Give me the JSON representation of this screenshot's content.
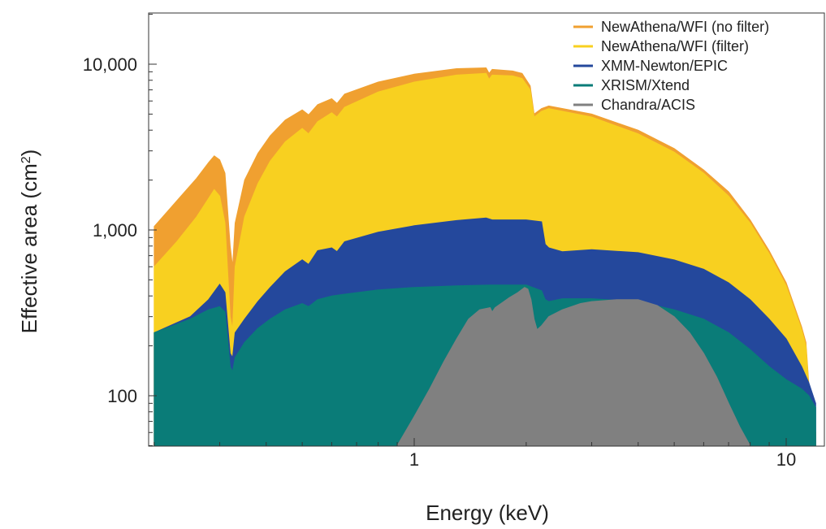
{
  "chart_data": {
    "type": "area",
    "xlabel": "Energy (keV)",
    "ylabel": "Effective area (cm2)",
    "x_scale": "log",
    "y_scale": "log",
    "xlim": [
      0.2,
      12
    ],
    "ylim": [
      50,
      20000
    ],
    "x_ticks": [
      {
        "value": 1,
        "label": "1"
      },
      {
        "value": 10,
        "label": "10"
      }
    ],
    "y_ticks": [
      {
        "value": 100,
        "label": "100"
      },
      {
        "value": 1000,
        "label": "1,000"
      },
      {
        "value": 10000,
        "label": "10,000"
      }
    ],
    "legend_position": "top-right",
    "grid": false,
    "series": [
      {
        "name": "NewAthena/WFI (no filter)",
        "color": "#F0A030",
        "points": [
          [
            0.2,
            1050
          ],
          [
            0.23,
            1500
          ],
          [
            0.26,
            2050
          ],
          [
            0.28,
            2550
          ],
          [
            0.29,
            2800
          ],
          [
            0.3,
            2650
          ],
          [
            0.31,
            2200
          ],
          [
            0.32,
            800
          ],
          [
            0.325,
            600
          ],
          [
            0.33,
            1100
          ],
          [
            0.35,
            2000
          ],
          [
            0.38,
            2900
          ],
          [
            0.41,
            3700
          ],
          [
            0.45,
            4600
          ],
          [
            0.5,
            5300
          ],
          [
            0.52,
            4950
          ],
          [
            0.55,
            5700
          ],
          [
            0.6,
            6200
          ],
          [
            0.62,
            5800
          ],
          [
            0.65,
            6600
          ],
          [
            0.8,
            7800
          ],
          [
            1.0,
            8700
          ],
          [
            1.3,
            9400
          ],
          [
            1.56,
            9500
          ],
          [
            1.59,
            8800
          ],
          [
            1.62,
            9300
          ],
          [
            1.84,
            9100
          ],
          [
            1.95,
            8800
          ],
          [
            2.05,
            7400
          ],
          [
            2.1,
            5000
          ],
          [
            2.2,
            5400
          ],
          [
            2.3,
            5600
          ],
          [
            3.0,
            5000
          ],
          [
            4.0,
            4000
          ],
          [
            5.0,
            3100
          ],
          [
            6.0,
            2300
          ],
          [
            7.0,
            1700
          ],
          [
            8.0,
            1150
          ],
          [
            9.0,
            750
          ],
          [
            10.0,
            480
          ],
          [
            11.0,
            260
          ],
          [
            11.3,
            210
          ],
          [
            11.6,
            90
          ],
          [
            12.0,
            60
          ]
        ]
      },
      {
        "name": "NewAthena/WFI (filter)",
        "color": "#F8D020",
        "points": [
          [
            0.2,
            600
          ],
          [
            0.23,
            850
          ],
          [
            0.26,
            1200
          ],
          [
            0.28,
            1550
          ],
          [
            0.29,
            1750
          ],
          [
            0.3,
            1600
          ],
          [
            0.31,
            1100
          ],
          [
            0.32,
            300
          ],
          [
            0.325,
            250
          ],
          [
            0.33,
            600
          ],
          [
            0.35,
            1200
          ],
          [
            0.38,
            1900
          ],
          [
            0.41,
            2600
          ],
          [
            0.45,
            3400
          ],
          [
            0.5,
            4100
          ],
          [
            0.52,
            3800
          ],
          [
            0.55,
            4500
          ],
          [
            0.6,
            5100
          ],
          [
            0.62,
            4800
          ],
          [
            0.65,
            5500
          ],
          [
            0.8,
            6800
          ],
          [
            1.0,
            7800
          ],
          [
            1.3,
            8600
          ],
          [
            1.56,
            8800
          ],
          [
            1.59,
            8100
          ],
          [
            1.62,
            8600
          ],
          [
            1.84,
            8500
          ],
          [
            1.95,
            8200
          ],
          [
            2.05,
            7000
          ],
          [
            2.1,
            4800
          ],
          [
            2.2,
            5200
          ],
          [
            2.3,
            5400
          ],
          [
            3.0,
            4800
          ],
          [
            4.0,
            3800
          ],
          [
            5.0,
            2950
          ],
          [
            6.0,
            2200
          ],
          [
            7.0,
            1600
          ],
          [
            8.0,
            1100
          ],
          [
            9.0,
            720
          ],
          [
            10.0,
            460
          ],
          [
            11.0,
            250
          ],
          [
            11.3,
            200
          ],
          [
            11.6,
            85
          ],
          [
            12.0,
            60
          ]
        ]
      },
      {
        "name": "XMM-Newton/EPIC",
        "color": "#24489C",
        "points": [
          [
            0.2,
            240
          ],
          [
            0.25,
            300
          ],
          [
            0.28,
            380
          ],
          [
            0.3,
            470
          ],
          [
            0.31,
            420
          ],
          [
            0.32,
            180
          ],
          [
            0.325,
            170
          ],
          [
            0.33,
            240
          ],
          [
            0.35,
            290
          ],
          [
            0.38,
            370
          ],
          [
            0.41,
            450
          ],
          [
            0.45,
            560
          ],
          [
            0.5,
            660
          ],
          [
            0.52,
            620
          ],
          [
            0.55,
            750
          ],
          [
            0.6,
            780
          ],
          [
            0.62,
            740
          ],
          [
            0.65,
            850
          ],
          [
            0.8,
            970
          ],
          [
            1.0,
            1060
          ],
          [
            1.3,
            1140
          ],
          [
            1.56,
            1180
          ],
          [
            1.62,
            1150
          ],
          [
            2.0,
            1150
          ],
          [
            2.2,
            1120
          ],
          [
            2.25,
            820
          ],
          [
            2.3,
            780
          ],
          [
            2.5,
            740
          ],
          [
            3.0,
            760
          ],
          [
            4.0,
            730
          ],
          [
            5.0,
            660
          ],
          [
            6.0,
            580
          ],
          [
            7.0,
            480
          ],
          [
            8.0,
            380
          ],
          [
            9.0,
            290
          ],
          [
            10.0,
            220
          ],
          [
            11.0,
            150
          ],
          [
            11.5,
            120
          ],
          [
            12.0,
            90
          ]
        ]
      },
      {
        "name": "XRISM/Xtend",
        "color": "#0A7C78",
        "points": [
          [
            0.2,
            240
          ],
          [
            0.22,
            260
          ],
          [
            0.25,
            290
          ],
          [
            0.28,
            330
          ],
          [
            0.3,
            345
          ],
          [
            0.31,
            320
          ],
          [
            0.32,
            150
          ],
          [
            0.325,
            140
          ],
          [
            0.33,
            170
          ],
          [
            0.35,
            210
          ],
          [
            0.38,
            255
          ],
          [
            0.41,
            290
          ],
          [
            0.45,
            330
          ],
          [
            0.5,
            360
          ],
          [
            0.52,
            345
          ],
          [
            0.55,
            380
          ],
          [
            0.6,
            400
          ],
          [
            0.65,
            410
          ],
          [
            0.8,
            435
          ],
          [
            1.0,
            450
          ],
          [
            1.3,
            460
          ],
          [
            1.6,
            465
          ],
          [
            2.0,
            465
          ],
          [
            2.2,
            430
          ],
          [
            2.25,
            380
          ],
          [
            2.3,
            370
          ],
          [
            2.5,
            385
          ],
          [
            3.0,
            385
          ],
          [
            4.0,
            370
          ],
          [
            5.0,
            330
          ],
          [
            6.0,
            290
          ],
          [
            7.0,
            240
          ],
          [
            8.0,
            190
          ],
          [
            9.0,
            150
          ],
          [
            10.0,
            125
          ],
          [
            11.0,
            110
          ],
          [
            11.5,
            100
          ],
          [
            12.0,
            85
          ]
        ]
      },
      {
        "name": "Chandra/ACIS",
        "color": "#808080",
        "points": [
          [
            0.9,
            50
          ],
          [
            1.0,
            75
          ],
          [
            1.1,
            110
          ],
          [
            1.2,
            160
          ],
          [
            1.3,
            220
          ],
          [
            1.4,
            290
          ],
          [
            1.5,
            330
          ],
          [
            1.6,
            340
          ],
          [
            1.62,
            320
          ],
          [
            1.65,
            340
          ],
          [
            1.8,
            390
          ],
          [
            1.9,
            420
          ],
          [
            1.98,
            450
          ],
          [
            2.02,
            440
          ],
          [
            2.06,
            380
          ],
          [
            2.1,
            290
          ],
          [
            2.14,
            250
          ],
          [
            2.2,
            265
          ],
          [
            2.3,
            300
          ],
          [
            2.5,
            330
          ],
          [
            2.8,
            360
          ],
          [
            3.0,
            370
          ],
          [
            3.5,
            380
          ],
          [
            4.0,
            380
          ],
          [
            4.5,
            350
          ],
          [
            5.0,
            300
          ],
          [
            5.5,
            240
          ],
          [
            6.0,
            180
          ],
          [
            6.5,
            130
          ],
          [
            7.0,
            90
          ],
          [
            7.5,
            65
          ],
          [
            8.0,
            50
          ]
        ]
      }
    ]
  }
}
